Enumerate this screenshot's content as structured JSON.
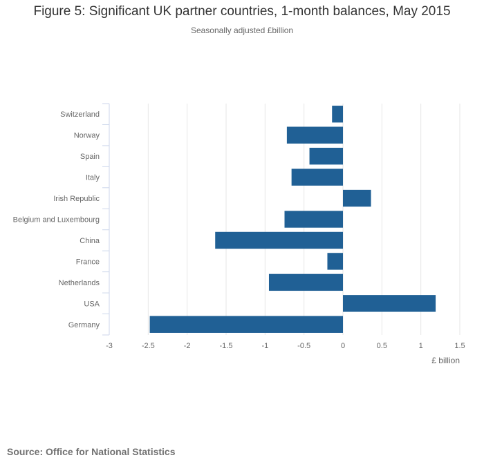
{
  "page": {
    "title": "Figure 5: Significant UK partner countries, 1-month balances, May 2015",
    "subtitle": "Seasonally adjusted £billion",
    "source": "Source: Office for National Statistics"
  },
  "chart_data": {
    "type": "bar",
    "orientation": "horizontal",
    "title": "Figure 5: Significant UK partner countries, 1-month balances, May 2015",
    "subtitle": "Seasonally adjusted £billion",
    "categories": [
      "Switzerland",
      "Norway",
      "Spain",
      "Italy",
      "Irish Republic",
      "Belgium and Luxembourg",
      "China",
      "France",
      "Netherlands",
      "USA",
      "Germany"
    ],
    "values": [
      -0.14,
      -0.72,
      -0.43,
      -0.66,
      0.36,
      -0.75,
      -1.64,
      -0.2,
      -0.95,
      1.19,
      -2.48
    ],
    "xlabel": "£ billion",
    "ylabel": "",
    "xlim": [
      -3,
      1.5
    ],
    "xticks": [
      -3,
      -2.5,
      -2,
      -1.5,
      -1,
      -0.5,
      0,
      0.5,
      1,
      1.5
    ],
    "xtick_labels": [
      "-3",
      "-2.5",
      "-2",
      "-1.5",
      "-1",
      "-0.5",
      "0",
      "0.5",
      "1",
      "1.5"
    ],
    "grid": true,
    "bar_color": "#206095"
  }
}
